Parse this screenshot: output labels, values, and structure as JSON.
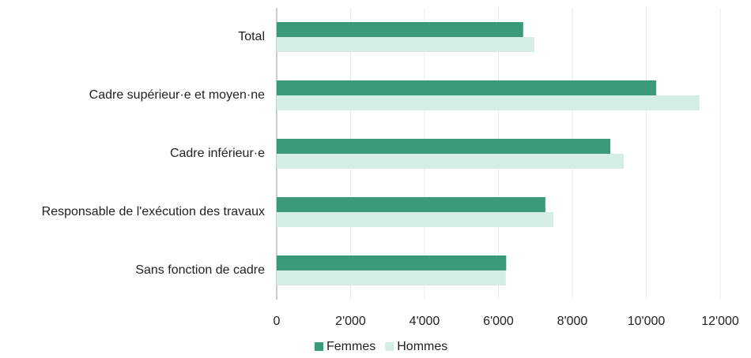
{
  "chart_data": {
    "type": "barh",
    "categories": [
      "Total",
      "Cadre supérieur·e et moyen·ne",
      "Cadre inférieur·e",
      "Responsable de l'exécution des travaux",
      "Sans fonction de cadre"
    ],
    "series": [
      {
        "name": "Femmes",
        "color": "#3a9a7a",
        "values": [
          6670,
          10270,
          9030,
          7270,
          6210
        ]
      },
      {
        "name": "Hommes",
        "color": "#d4eee3",
        "values": [
          6970,
          11440,
          9390,
          7490,
          6200
        ]
      }
    ],
    "xlim": [
      0,
      12000
    ],
    "xticks": [
      0,
      {
        "value": 2000,
        "label": "2'000"
      },
      {
        "value": 4000,
        "label": "4'000"
      },
      {
        "value": 6000,
        "label": "6'000"
      },
      {
        "value": 8000,
        "label": "8'000"
      },
      {
        "value": 10000,
        "label": "10'000"
      },
      {
        "value": 12000,
        "label": "12'000"
      }
    ],
    "grid": true,
    "legend": "bottom"
  }
}
